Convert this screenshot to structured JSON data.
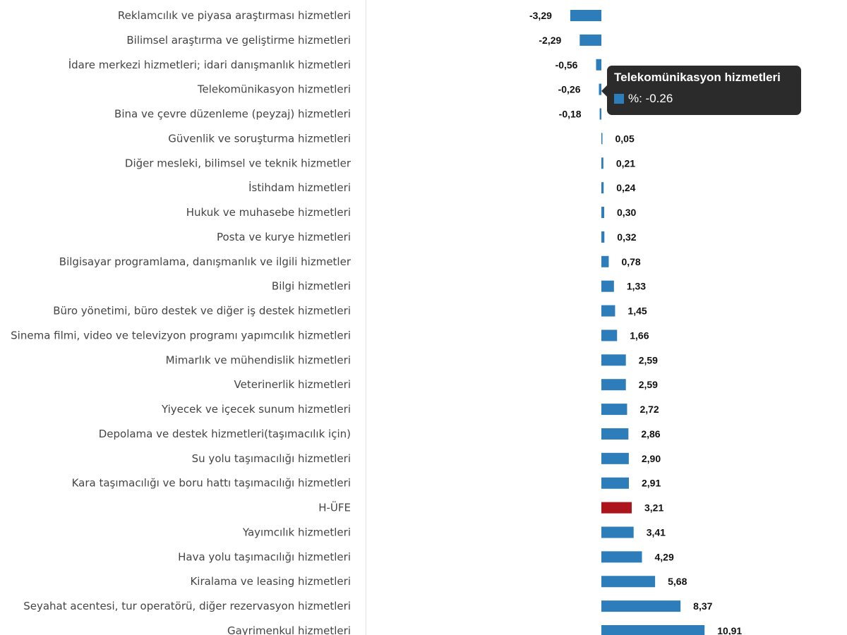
{
  "chart_data": {
    "type": "bar",
    "orientation": "horizontal",
    "categories": [
      "Reklamcılık ve piyasa araştırması hizmetleri",
      "Bilimsel araştırma ve geliştirme hizmetleri",
      "İdare merkezi hizmetleri; idari danışmanlık hizmetleri",
      "Telekomünikasyon hizmetleri",
      "Bina ve çevre düzenleme (peyzaj) hizmetleri",
      "Güvenlik ve soruşturma hizmetleri",
      "Diğer mesleki, bilimsel ve teknik hizmetler",
      "İstihdam hizmetleri",
      "Hukuk ve muhasebe hizmetleri",
      "Posta ve kurye hizmetleri",
      "Bilgisayar programlama, danışmanlık ve ilgili hizmetler",
      "Bilgi hizmetleri",
      "Büro yönetimi, büro destek ve diğer iş destek hizmetleri",
      "Sinema filmi, video ve televizyon programı yapımcılık hizmetleri",
      "Mimarlık ve mühendislik hizmetleri",
      "Veterinerlik hizmetleri",
      "Yiyecek ve içecek sunum hizmetleri",
      "Depolama ve destek hizmetleri(taşımacılık için)",
      "Su yolu taşımacılığı hizmetleri",
      "Kara taşımacılığı ve boru hattı taşımacılığı hizmetleri",
      "H-ÜFE",
      "Yayımcılık hizmetleri",
      "Hava yolu taşımacılığı hizmetleri",
      "Kiralama ve leasing hizmetleri",
      "Seyahat acentesi, tur operatörü, diğer rezervasyon hizmetleri",
      "Gayrimenkul hizmetleri"
    ],
    "values": [
      -3.29,
      -2.29,
      -0.56,
      -0.26,
      -0.18,
      0.05,
      0.21,
      0.24,
      0.3,
      0.32,
      0.78,
      1.33,
      1.45,
      1.66,
      2.59,
      2.59,
      2.72,
      2.86,
      2.9,
      2.91,
      3.21,
      3.41,
      4.29,
      5.68,
      8.37,
      10.91
    ],
    "value_labels": [
      "-3,29",
      "-2,29",
      "-0,56",
      "-0,26",
      "-0,18",
      "0,05",
      "0,21",
      "0,24",
      "0,30",
      "0,32",
      "0,78",
      "1,33",
      "1,45",
      "1,66",
      "2,59",
      "2,59",
      "2,72",
      "2,86",
      "2,90",
      "2,91",
      "3,21",
      "3,41",
      "4,29",
      "5,68",
      "8,37",
      "10,91"
    ],
    "highlight_category": "H-ÜFE",
    "colors": {
      "default": "#2e7dbb",
      "highlight": "#ad151c"
    },
    "xlim": [
      -3.5,
      11
    ],
    "title": "",
    "xlabel": "",
    "ylabel": "",
    "grid": false
  },
  "tooltip": {
    "title": "Telekomünikasyon hizmetleri",
    "series_label": "%: -0.26",
    "swatch_color": "#2e7dbb"
  }
}
